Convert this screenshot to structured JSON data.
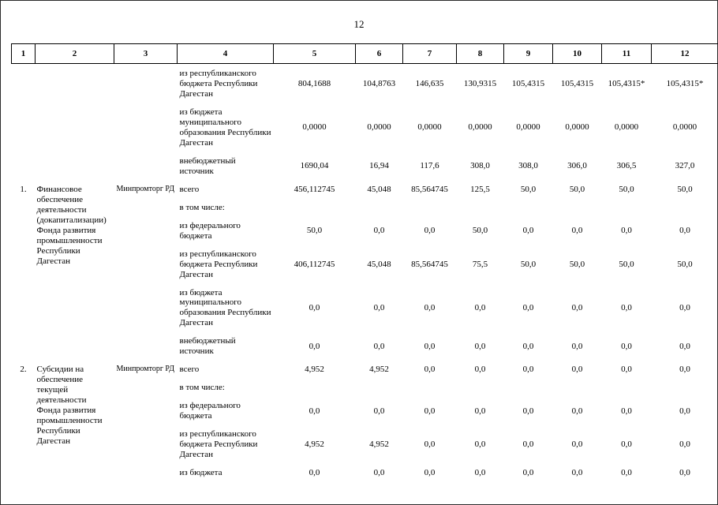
{
  "page": {
    "number": "12"
  },
  "table": {
    "column_numbers": [
      "1",
      "2",
      "3",
      "4",
      "5",
      "6",
      "7",
      "8",
      "9",
      "10",
      "11",
      "12"
    ],
    "groups": [
      {
        "num": "",
        "name": "",
        "executor": "",
        "subrows": [
          {
            "source": "из республиканского бюджета Республики Дагестан",
            "values": [
              "804,1688",
              "104,8763",
              "146,635",
              "130,9315",
              "105,4315",
              "105,4315",
              "105,4315*",
              "105,4315*"
            ]
          },
          {
            "source": "из бюджета муниципального образования Республики Дагестан",
            "values": [
              "0,0000",
              "0,0000",
              "0,0000",
              "0,0000",
              "0,0000",
              "0,0000",
              "0,0000",
              "0,0000"
            ]
          },
          {
            "source": "внебюджетный источник",
            "values": [
              "1690,04",
              "16,94",
              "117,6",
              "308,0",
              "308,0",
              "306,0",
              "306,5",
              "327,0"
            ]
          }
        ]
      },
      {
        "num": "1.",
        "name": "Финансовое обеспечение деятельности (докапитализации) Фонда развития промышленности Республики Дагестан",
        "executor": "Минпромторг РД",
        "subrows": [
          {
            "source": "всего",
            "values": [
              "456,112745",
              "45,048",
              "85,564745",
              "125,5",
              "50,0",
              "50,0",
              "50,0",
              "50,0"
            ]
          },
          {
            "source": "в том числе:",
            "values": []
          },
          {
            "source": "из федерального бюджета",
            "values": [
              "50,0",
              "0,0",
              "0,0",
              "50,0",
              "0,0",
              "0,0",
              "0,0",
              "0,0"
            ]
          },
          {
            "source": "из республиканского бюджета Республики Дагестан",
            "values": [
              "406,112745",
              "45,048",
              "85,564745",
              "75,5",
              "50,0",
              "50,0",
              "50,0",
              "50,0"
            ]
          },
          {
            "source": "из бюджета муниципального образования Республики Дагестан",
            "values": [
              "0,0",
              "0,0",
              "0,0",
              "0,0",
              "0,0",
              "0,0",
              "0,0",
              "0,0"
            ]
          },
          {
            "source": "внебюджетный источник",
            "values": [
              "0,0",
              "0,0",
              "0,0",
              "0,0",
              "0,0",
              "0,0",
              "0,0",
              "0,0"
            ]
          }
        ]
      },
      {
        "num": "2.",
        "name": "Субсидии на обеспечение текущей деятельности Фонда развития промышленности Республики Дагестан",
        "executor": "Минпромторг РД",
        "subrows": [
          {
            "source": "всего",
            "values": [
              "4,952",
              "4,952",
              "0,0",
              "0,0",
              "0,0",
              "0,0",
              "0,0",
              "0,0"
            ]
          },
          {
            "source": "в том числе:",
            "values": []
          },
          {
            "source": "из федерального бюджета",
            "values": [
              "0,0",
              "0,0",
              "0,0",
              "0,0",
              "0,0",
              "0,0",
              "0,0",
              "0,0"
            ]
          },
          {
            "source": "из республиканского бюджета Республики Дагестан",
            "values": [
              "4,952",
              "4,952",
              "0,0",
              "0,0",
              "0,0",
              "0,0",
              "0,0",
              "0,0"
            ]
          },
          {
            "source": "из бюджета",
            "values": [
              "0,0",
              "0,0",
              "0,0",
              "0,0",
              "0,0",
              "0,0",
              "0,0",
              "0,0"
            ]
          }
        ]
      }
    ]
  }
}
